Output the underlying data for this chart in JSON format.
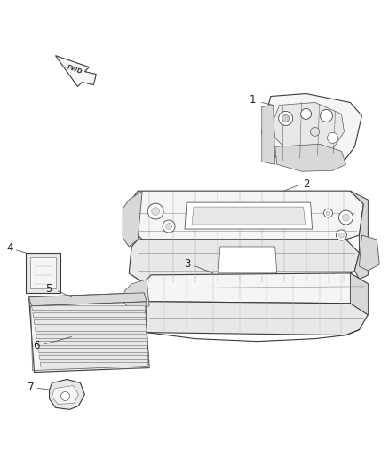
{
  "background_color": "#ffffff",
  "fig_width": 4.38,
  "fig_height": 5.33,
  "dpi": 100,
  "edge_color": "#3a3a3a",
  "light_fill": "#f5f5f5",
  "mid_fill": "#e8e8e8",
  "dark_fill": "#d8d8d8",
  "line_color": "#555555",
  "label_color": "#222222",
  "fwd_label": "FWD",
  "part1_label": "1",
  "part2_label": "2",
  "part3_label": "3",
  "part4_label": "4",
  "part5_label": "5",
  "part6_label": "6",
  "part7_label": "7"
}
